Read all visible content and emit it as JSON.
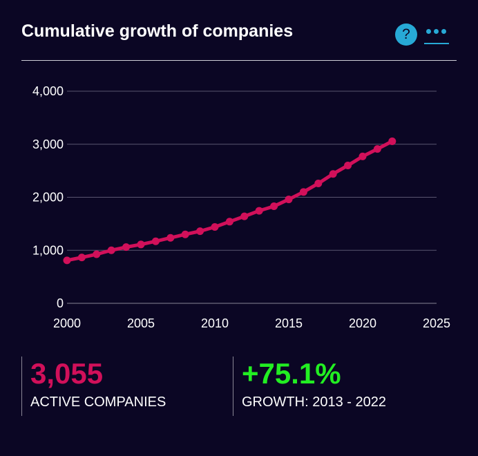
{
  "header": {
    "title": "Cumulative growth of companies",
    "help_label": "?",
    "help_icon": "question-circle-icon",
    "more_icon": "ellipsis-icon"
  },
  "colors": {
    "background": "#0b0624",
    "line": "#d1105a",
    "accent": "#27a9d6",
    "growth": "#22ee22"
  },
  "chart_data": {
    "type": "line",
    "title": "Cumulative growth of companies",
    "xlabel": "",
    "ylabel": "",
    "xlim": [
      2000,
      2025
    ],
    "ylim": [
      0,
      4000
    ],
    "x_ticks": [
      "2000",
      "2005",
      "2010",
      "2015",
      "2020",
      "2025"
    ],
    "y_ticks": [
      "0",
      "1,000",
      "2,000",
      "3,000",
      "4,000"
    ],
    "grid": true,
    "legend": "none",
    "series": [
      {
        "x": [
          2000,
          2001,
          2002,
          2003,
          2004,
          2005,
          2006,
          2007,
          2008,
          2009,
          2010,
          2011,
          2012,
          2013,
          2014,
          2015,
          2016,
          2017,
          2018,
          2019,
          2020,
          2021,
          2022
        ],
        "values": [
          810,
          865,
          925,
          1000,
          1060,
          1110,
          1170,
          1235,
          1300,
          1360,
          1440,
          1540,
          1640,
          1745,
          1830,
          1960,
          2100,
          2260,
          2440,
          2600,
          2770,
          2910,
          3055
        ]
      }
    ]
  },
  "stats": [
    {
      "value": "3,055",
      "label": "ACTIVE COMPANIES"
    },
    {
      "value": "+75.1%",
      "label": "GROWTH: 2013 - 2022"
    }
  ]
}
